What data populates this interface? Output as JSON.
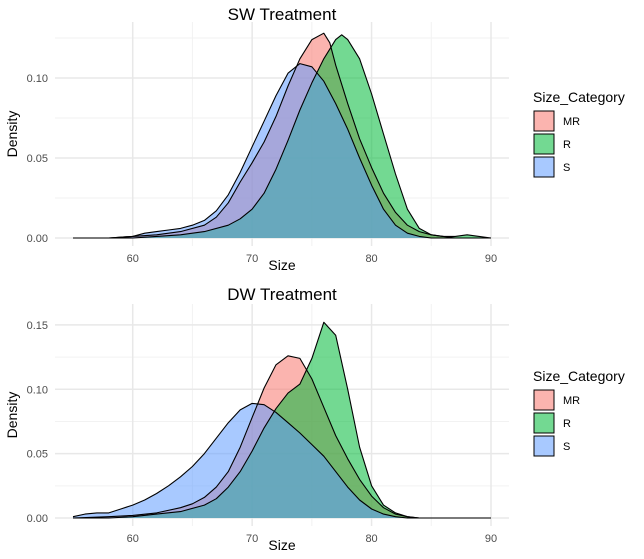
{
  "chart_data": [
    {
      "type": "area",
      "title": "SW Treatment",
      "xlabel": "Size",
      "ylabel": "Density",
      "xlim": [
        55,
        90
      ],
      "ylim": [
        0,
        0.13
      ],
      "x_ticks": [
        60,
        70,
        80,
        90
      ],
      "y_ticks": [
        0.0,
        0.05,
        0.1
      ],
      "y_tick_labels": [
        "0.00",
        "0.05",
        "0.10"
      ],
      "grid": true,
      "legend_title": "Size_Category",
      "legend_position": "right",
      "series": [
        {
          "name": "MR",
          "color": "#F8766D",
          "x": [
            55,
            58,
            60,
            62,
            64,
            66,
            67,
            68,
            69,
            70,
            71,
            72,
            73,
            74,
            75,
            76,
            76.5,
            77,
            78,
            79,
            80,
            81,
            82,
            83,
            84,
            85,
            86,
            87,
            88,
            90
          ],
          "y": [
            0.0,
            0.0,
            0.001,
            0.002,
            0.004,
            0.008,
            0.013,
            0.022,
            0.035,
            0.047,
            0.06,
            0.076,
            0.095,
            0.112,
            0.124,
            0.128,
            0.122,
            0.108,
            0.084,
            0.062,
            0.044,
            0.028,
            0.016,
            0.008,
            0.004,
            0.002,
            0.001,
            0.0,
            0.0,
            0.0
          ]
        },
        {
          "name": "R",
          "color": "#00BA38",
          "x": [
            55,
            58,
            60,
            62,
            64,
            66,
            68,
            69,
            70,
            71,
            72,
            73,
            74,
            75,
            76,
            77,
            77.5,
            78,
            79,
            80,
            81,
            82,
            83,
            84,
            85,
            86,
            87,
            88,
            89,
            90
          ],
          "y": [
            0.0,
            0.0,
            0.0,
            0.001,
            0.002,
            0.004,
            0.008,
            0.012,
            0.018,
            0.028,
            0.043,
            0.061,
            0.08,
            0.097,
            0.112,
            0.124,
            0.127,
            0.124,
            0.112,
            0.09,
            0.065,
            0.04,
            0.018,
            0.006,
            0.002,
            0.001,
            0.001,
            0.002,
            0.001,
            0.0
          ]
        },
        {
          "name": "S",
          "color": "#619CFF",
          "x": [
            55,
            58,
            60,
            61,
            62,
            63,
            64,
            65,
            66,
            67,
            68,
            69,
            70,
            71,
            72,
            73,
            74,
            75,
            76,
            77,
            78,
            79,
            80,
            81,
            82,
            83,
            84,
            85,
            87,
            90
          ],
          "y": [
            0.0,
            0.0,
            0.001,
            0.003,
            0.004,
            0.005,
            0.006,
            0.008,
            0.011,
            0.017,
            0.027,
            0.041,
            0.057,
            0.073,
            0.089,
            0.103,
            0.109,
            0.107,
            0.098,
            0.084,
            0.068,
            0.05,
            0.033,
            0.018,
            0.008,
            0.003,
            0.001,
            0.0,
            0.0,
            0.0
          ]
        }
      ]
    },
    {
      "type": "area",
      "title": "DW Treatment",
      "xlabel": "Size",
      "ylabel": "Density",
      "xlim": [
        55,
        90
      ],
      "ylim": [
        0,
        0.16
      ],
      "x_ticks": [
        60,
        70,
        80,
        90
      ],
      "y_ticks": [
        0.0,
        0.05,
        0.1,
        0.15
      ],
      "y_tick_labels": [
        "0.00",
        "0.05",
        "0.10",
        "0.15"
      ],
      "grid": true,
      "legend_title": "Size_Category",
      "legend_position": "right",
      "series": [
        {
          "name": "MR",
          "color": "#F8766D",
          "x": [
            55,
            58,
            60,
            62,
            64,
            65,
            66,
            67,
            68,
            69,
            70,
            71,
            72,
            73,
            74,
            75,
            76,
            77,
            78,
            79,
            80,
            81,
            82,
            83,
            84,
            85,
            87,
            90
          ],
          "y": [
            0.0,
            0.001,
            0.002,
            0.004,
            0.008,
            0.011,
            0.016,
            0.024,
            0.036,
            0.055,
            0.078,
            0.101,
            0.119,
            0.126,
            0.124,
            0.108,
            0.086,
            0.064,
            0.046,
            0.03,
            0.017,
            0.008,
            0.003,
            0.001,
            0.0,
            0.0,
            0.0,
            0.0
          ]
        },
        {
          "name": "R",
          "color": "#00BA38",
          "x": [
            55,
            58,
            60,
            62,
            64,
            66,
            67,
            68,
            69,
            70,
            71,
            72,
            73,
            74,
            75,
            76,
            77,
            78,
            79,
            80,
            81,
            82,
            83,
            84,
            85,
            87,
            90
          ],
          "y": [
            0.0,
            0.0,
            0.001,
            0.003,
            0.005,
            0.01,
            0.015,
            0.024,
            0.036,
            0.052,
            0.07,
            0.085,
            0.097,
            0.104,
            0.124,
            0.152,
            0.142,
            0.1,
            0.055,
            0.025,
            0.01,
            0.004,
            0.001,
            0.0,
            0.0,
            0.0,
            0.0
          ]
        },
        {
          "name": "S",
          "color": "#619CFF",
          "x": [
            55,
            56,
            57,
            58,
            59,
            60,
            61,
            62,
            63,
            64,
            65,
            66,
            67,
            68,
            69,
            70,
            71,
            72,
            73,
            74,
            75,
            76,
            77,
            78,
            79,
            80,
            81,
            82,
            83,
            85,
            90
          ],
          "y": [
            0.001,
            0.003,
            0.004,
            0.004,
            0.007,
            0.01,
            0.014,
            0.019,
            0.025,
            0.032,
            0.04,
            0.05,
            0.062,
            0.074,
            0.084,
            0.089,
            0.088,
            0.082,
            0.074,
            0.066,
            0.057,
            0.048,
            0.036,
            0.024,
            0.014,
            0.007,
            0.003,
            0.001,
            0.0,
            0.0,
            0.0
          ]
        }
      ]
    }
  ]
}
